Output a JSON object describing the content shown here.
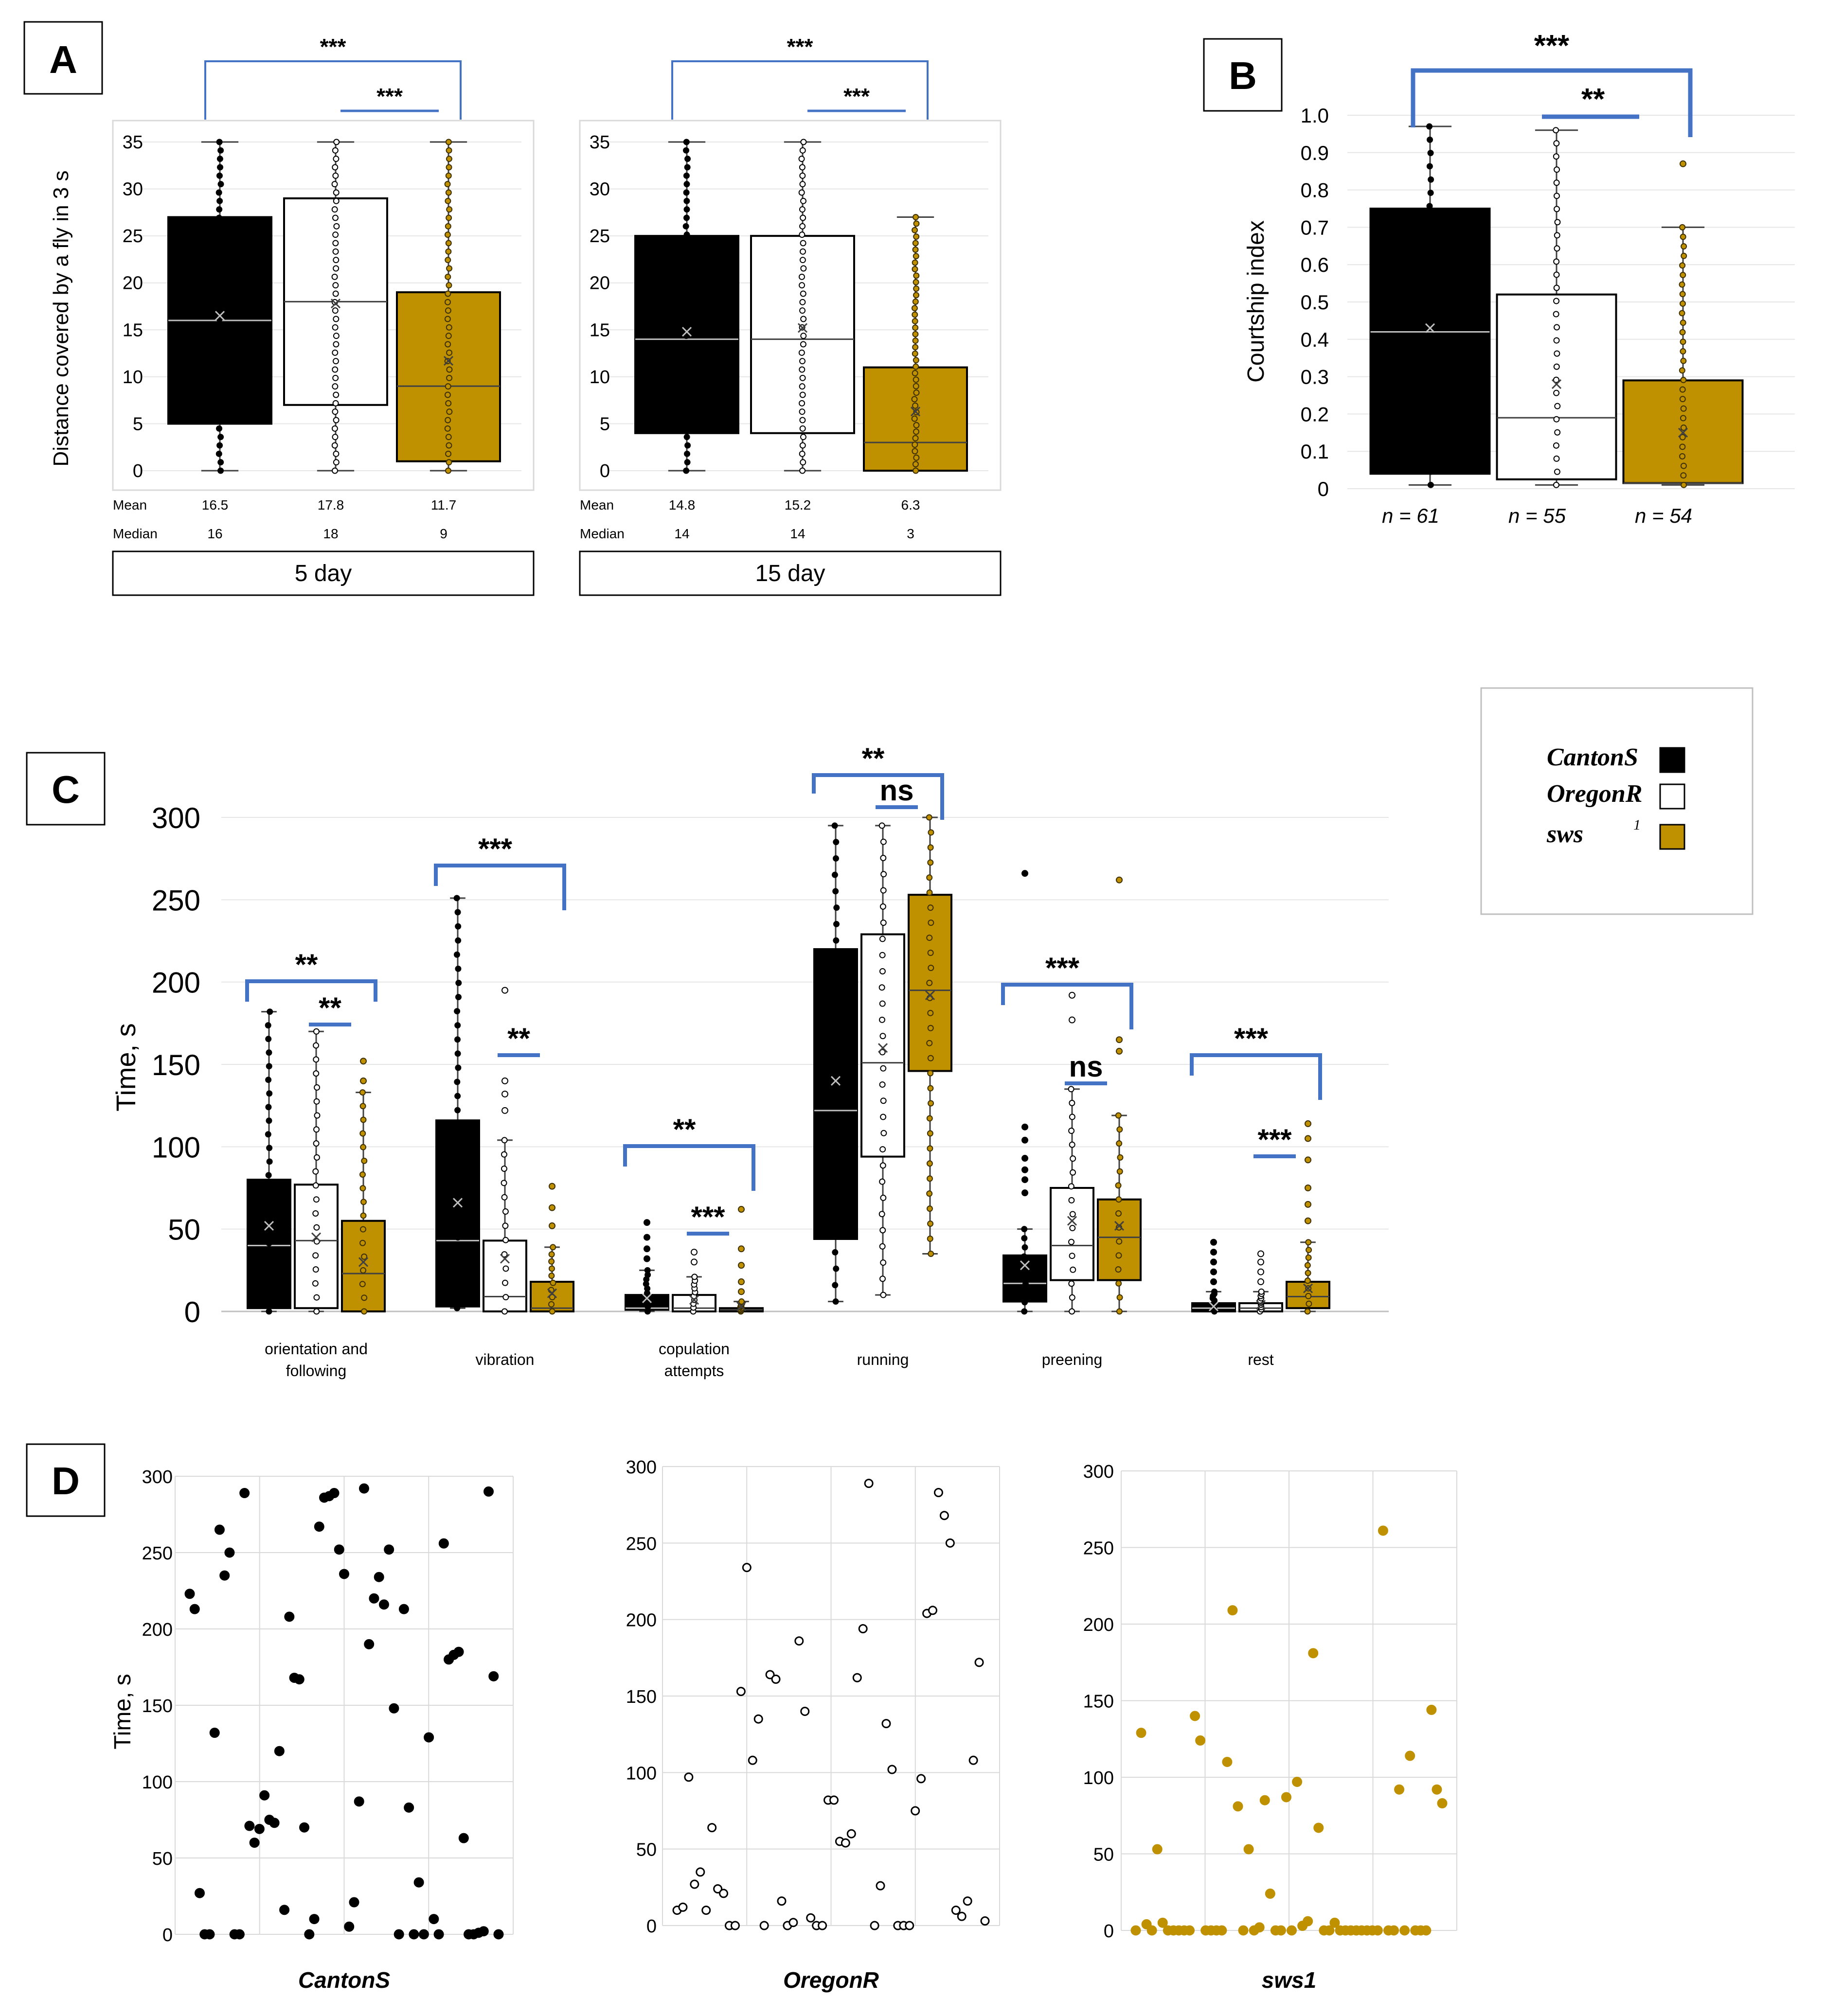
{
  "colors": {
    "canton": "#000000",
    "oregon": "#ffffff",
    "sws": "#bf9000",
    "bracket": "#4472c4",
    "grid": "#d9d9d9",
    "axis": "#bfbfbf"
  },
  "chart_data": [
    {
      "panel": "A",
      "type": "box",
      "ylabel": "Distance covered by a fly in 3 s",
      "ylim": [
        0,
        35
      ],
      "yticks": [
        "0",
        "5",
        "10",
        "15",
        "20",
        "25",
        "30",
        "35"
      ],
      "row_labels": [
        "Mean",
        "Median"
      ],
      "groups": [
        {
          "title": "5 day",
          "series": [
            {
              "name": "CantonS",
              "whisker_low": 0,
              "q1": 5,
              "median": 16,
              "q3": 27,
              "whisker_high": 35,
              "mean": 16.5,
              "mean_label": "16.5",
              "median_label": "16"
            },
            {
              "name": "OregonR",
              "whisker_low": 0,
              "q1": 7,
              "median": 18,
              "q3": 29,
              "whisker_high": 35,
              "mean": 17.8,
              "mean_label": "17.8",
              "median_label": "18"
            },
            {
              "name": "sws1",
              "whisker_low": 0,
              "q1": 1,
              "median": 9,
              "q3": 19,
              "whisker_high": 35,
              "mean": 11.7,
              "mean_label": "11.7",
              "median_label": "9"
            }
          ],
          "brackets": [
            {
              "from": 0,
              "to": 2,
              "label": "***"
            },
            {
              "from": 1,
              "to": 2,
              "label": "***"
            }
          ]
        },
        {
          "title": "15 day",
          "series": [
            {
              "name": "CantonS",
              "whisker_low": 0,
              "q1": 4,
              "median": 14,
              "q3": 25,
              "whisker_high": 35,
              "mean": 14.8,
              "mean_label": "14.8",
              "median_label": "14"
            },
            {
              "name": "OregonR",
              "whisker_low": 0,
              "q1": 4,
              "median": 14,
              "q3": 25,
              "whisker_high": 35,
              "mean": 15.2,
              "mean_label": "15.2",
              "median_label": "14"
            },
            {
              "name": "sws1",
              "whisker_low": 0,
              "q1": 0,
              "median": 3,
              "q3": 11,
              "whisker_high": 27,
              "mean": 6.3,
              "mean_label": "6.3",
              "median_label": "3"
            }
          ],
          "brackets": [
            {
              "from": 0,
              "to": 2,
              "label": "***"
            },
            {
              "from": 1,
              "to": 2,
              "label": "***"
            }
          ]
        }
      ]
    },
    {
      "panel": "B",
      "type": "box",
      "ylabel": "Courtship index",
      "ylim": [
        0,
        1.0
      ],
      "yticks": [
        "0",
        "0.1",
        "0.2",
        "0.3",
        "0.4",
        "0.5",
        "0.6",
        "0.7",
        "0.8",
        "0.9",
        "1.0"
      ],
      "series": [
        {
          "name": "CantonS",
          "n_label": "n = 61",
          "whisker_low": 0.01,
          "q1": 0.04,
          "median": 0.42,
          "q3": 0.75,
          "whisker_high": 0.97,
          "mean": 0.43
        },
        {
          "name": "OregonR",
          "n_label": "n = 55",
          "whisker_low": 0.01,
          "q1": 0.025,
          "median": 0.19,
          "q3": 0.52,
          "whisker_high": 0.96,
          "mean": 0.28
        },
        {
          "name": "sws1",
          "n_label": "n = 54",
          "whisker_low": 0.01,
          "q1": 0.015,
          "median": 0.015,
          "q3": 0.29,
          "whisker_high": 0.7,
          "mean": 0.15,
          "outliers": [
            0.87
          ]
        }
      ],
      "brackets": [
        {
          "from": 0,
          "to": 2,
          "label": "***"
        },
        {
          "from": 1,
          "to": 2,
          "label": "**"
        }
      ]
    },
    {
      "panel": "C",
      "type": "box",
      "ylabel": "Time, s",
      "ylim": [
        0,
        300
      ],
      "yticks": [
        "0",
        "50",
        "100",
        "150",
        "200",
        "250",
        "300"
      ],
      "categories": [
        {
          "label": "orientation and following",
          "series": [
            {
              "whisker_low": 0,
              "q1": 2,
              "median": 40,
              "q3": 80,
              "whisker_high": 182,
              "mean": 52
            },
            {
              "whisker_low": 0,
              "q1": 2,
              "median": 43,
              "q3": 77,
              "whisker_high": 170,
              "mean": 45
            },
            {
              "whisker_low": 0,
              "q1": 0,
              "median": 23,
              "q3": 55,
              "whisker_high": 133,
              "mean": 30,
              "outliers": [
                140,
                152
              ]
            }
          ],
          "brackets": [
            {
              "from": 0,
              "to": 2,
              "label": "**"
            },
            {
              "from": 1,
              "to": 2,
              "label": "**"
            }
          ]
        },
        {
          "label": "vibration",
          "series": [
            {
              "whisker_low": 2,
              "q1": 3,
              "median": 43,
              "q3": 116,
              "whisker_high": 251,
              "mean": 66
            },
            {
              "whisker_low": 0,
              "q1": 0,
              "median": 9,
              "q3": 43,
              "whisker_high": 104,
              "mean": 32,
              "outliers": [
                122,
                132,
                140,
                195
              ]
            },
            {
              "whisker_low": 0,
              "q1": 0,
              "median": 2,
              "q3": 18,
              "whisker_high": 39,
              "mean": 11,
              "outliers": [
                52,
                63,
                76
              ]
            }
          ],
          "brackets": [
            {
              "from": 0,
              "to": 2,
              "label": "***"
            },
            {
              "from": 1,
              "to": 2,
              "label": "**"
            }
          ]
        },
        {
          "label": "copulation attempts",
          "series": [
            {
              "whisker_low": 0,
              "q1": 1,
              "median": 2,
              "q3": 10,
              "whisker_high": 25,
              "mean": 8,
              "outliers": [
                32,
                38,
                45,
                54
              ]
            },
            {
              "whisker_low": 0,
              "q1": 0,
              "median": 2,
              "q3": 10,
              "whisker_high": 21,
              "mean": 7,
              "outliers": [
                30,
                36
              ]
            },
            {
              "whisker_low": 0,
              "q1": 0,
              "median": 1,
              "q3": 2,
              "whisker_high": 6,
              "mean": 3,
              "outliers": [
                12,
                18,
                28,
                38,
                62
              ]
            }
          ],
          "brackets": [
            {
              "from": 0,
              "to": 2,
              "label": "**"
            },
            {
              "from": 1,
              "to": 2,
              "label": "***"
            }
          ]
        },
        {
          "label": "running",
          "series": [
            {
              "whisker_low": 6,
              "q1": 44,
              "median": 122,
              "q3": 220,
              "whisker_high": 295,
              "mean": 140
            },
            {
              "whisker_low": 10,
              "q1": 94,
              "median": 151,
              "q3": 229,
              "whisker_high": 295,
              "mean": 160
            },
            {
              "whisker_low": 35,
              "q1": 146,
              "median": 195,
              "q3": 253,
              "whisker_high": 300,
              "mean": 192
            }
          ],
          "brackets": [
            {
              "from": 0,
              "to": 2,
              "label": "**"
            },
            {
              "from": 1,
              "to": 2,
              "label": "ns"
            }
          ]
        },
        {
          "label": "preening",
          "series": [
            {
              "whisker_low": 0,
              "q1": 6,
              "median": 17,
              "q3": 34,
              "whisker_high": 50,
              "mean": 28,
              "outliers": [
                72,
                80,
                86,
                93,
                104,
                112,
                266
              ]
            },
            {
              "whisker_low": 0,
              "q1": 19,
              "median": 40,
              "q3": 75,
              "whisker_high": 135,
              "mean": 55,
              "outliers": [
                177,
                192
              ]
            },
            {
              "whisker_low": 0,
              "q1": 19,
              "median": 45,
              "q3": 68,
              "whisker_high": 119,
              "mean": 52,
              "outliers": [
                158,
                165,
                262
              ]
            }
          ],
          "brackets": [
            {
              "from": 0,
              "to": 2,
              "label": "***"
            },
            {
              "from": 1,
              "to": 2,
              "label": "ns"
            }
          ]
        },
        {
          "label": "rest",
          "series": [
            {
              "whisker_low": 0,
              "q1": 0,
              "median": 2,
              "q3": 5,
              "whisker_high": 12,
              "mean": 3,
              "outliers": [
                18,
                24,
                30,
                36,
                42
              ]
            },
            {
              "whisker_low": 0,
              "q1": 0,
              "median": 2,
              "q3": 5,
              "whisker_high": 12,
              "mean": 4,
              "outliers": [
                18,
                24,
                30,
                35
              ]
            },
            {
              "whisker_low": 0,
              "q1": 2,
              "median": 9,
              "q3": 18,
              "whisker_high": 42,
              "mean": 14,
              "outliers": [
                55,
                65,
                75,
                92,
                105,
                114
              ]
            }
          ],
          "brackets": [
            {
              "from": 0,
              "to": 2,
              "label": "***"
            },
            {
              "from": 1,
              "to": 2,
              "label": "***"
            }
          ]
        }
      ]
    },
    {
      "panel": "D",
      "type": "scatter",
      "ylabel": "Time, s",
      "ylim": [
        0,
        300
      ],
      "yticks": [
        "0",
        "50",
        "100",
        "150",
        "200",
        "250",
        "300"
      ],
      "plots": [
        {
          "label": "CantonS",
          "values": [
            223,
            213,
            27,
            0,
            0,
            132,
            265,
            235,
            250,
            0,
            0,
            289,
            71,
            60,
            69,
            91,
            75,
            73,
            120,
            16,
            208,
            168,
            167,
            70,
            0,
            10,
            267,
            286,
            287,
            289,
            252,
            236,
            5,
            21,
            87,
            292,
            190,
            220,
            234,
            216,
            252,
            148,
            0,
            213,
            83,
            0,
            34,
            0,
            129,
            10,
            0,
            256,
            180,
            183,
            185,
            63,
            0,
            0,
            1,
            2,
            290,
            169,
            0
          ]
        },
        {
          "label": "OregonR",
          "values": [
            10,
            12,
            97,
            27,
            35,
            10,
            64,
            24,
            21,
            0,
            0,
            153,
            234,
            108,
            135,
            0,
            164,
            161,
            16,
            0,
            2,
            186,
            140,
            5,
            0,
            0,
            82,
            82,
            55,
            54,
            60,
            162,
            194,
            289,
            0,
            26,
            132,
            102,
            0,
            0,
            0,
            75,
            96,
            204,
            206,
            283,
            268,
            250,
            10,
            6,
            16,
            108,
            172,
            3
          ]
        },
        {
          "label": "sws1",
          "values": [
            0,
            129,
            4,
            0,
            53,
            5,
            0,
            0,
            0,
            0,
            0,
            140,
            124,
            0,
            0,
            0,
            0,
            110,
            209,
            81,
            0,
            53,
            0,
            2,
            85,
            24,
            0,
            0,
            87,
            0,
            97,
            3,
            6,
            181,
            67,
            0,
            0,
            5,
            0,
            0,
            0,
            0,
            0,
            0,
            0,
            0,
            261,
            0,
            0,
            92,
            0,
            114,
            0,
            0,
            0,
            144,
            92,
            83
          ]
        }
      ]
    }
  ],
  "panels": {
    "a": "A",
    "b": "B",
    "c": "C",
    "d": "D"
  },
  "legend": {
    "items": [
      {
        "label": "CantonS"
      },
      {
        "label": "OregonR"
      },
      {
        "label": "sws"
      }
    ]
  }
}
